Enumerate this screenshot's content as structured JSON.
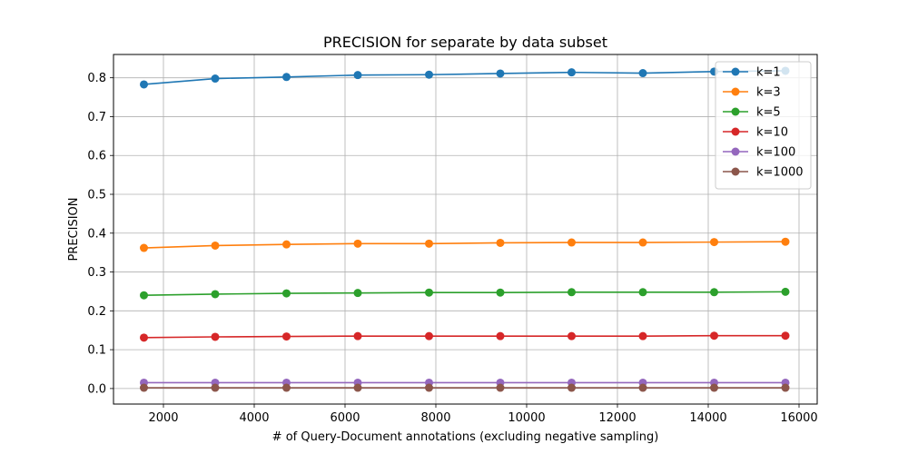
{
  "chart_data": {
    "type": "line",
    "title": "PRECISION for separate by data subset",
    "xlabel": "# of Query-Document annotations (excluding negative sampling)",
    "ylabel": "PRECISION",
    "xlim": [
      900,
      16400
    ],
    "ylim": [
      -0.04,
      0.86
    ],
    "xticks": [
      2000,
      4000,
      6000,
      8000,
      10000,
      12000,
      14000,
      16000
    ],
    "xtick_labels": [
      "2000",
      "4000",
      "6000",
      "8000",
      "10000",
      "12000",
      "14000",
      "16000"
    ],
    "yticks": [
      0.0,
      0.1,
      0.2,
      0.3,
      0.4,
      0.5,
      0.6,
      0.7,
      0.8
    ],
    "ytick_labels": [
      "0.0",
      "0.1",
      "0.2",
      "0.3",
      "0.4",
      "0.5",
      "0.6",
      "0.7",
      "0.8"
    ],
    "grid": true,
    "legend_position": "top-right",
    "x": [
      1570,
      3140,
      4710,
      6280,
      7850,
      9420,
      10990,
      12560,
      14130,
      15700
    ],
    "series": [
      {
        "name": "k=1",
        "color": "#1f77b4",
        "values": [
          0.783,
          0.798,
          0.802,
          0.807,
          0.808,
          0.811,
          0.814,
          0.812,
          0.816,
          0.818
        ]
      },
      {
        "name": "k=3",
        "color": "#ff7f0e",
        "values": [
          0.362,
          0.368,
          0.371,
          0.373,
          0.373,
          0.375,
          0.376,
          0.376,
          0.377,
          0.378
        ]
      },
      {
        "name": "k=5",
        "color": "#2ca02c",
        "values": [
          0.24,
          0.243,
          0.245,
          0.246,
          0.247,
          0.247,
          0.248,
          0.248,
          0.248,
          0.249
        ]
      },
      {
        "name": "k=10",
        "color": "#d62728",
        "values": [
          0.131,
          0.133,
          0.134,
          0.135,
          0.135,
          0.135,
          0.135,
          0.135,
          0.136,
          0.136
        ]
      },
      {
        "name": "k=100",
        "color": "#9467bd",
        "values": [
          0.015,
          0.015,
          0.015,
          0.015,
          0.015,
          0.015,
          0.015,
          0.015,
          0.015,
          0.015
        ]
      },
      {
        "name": "k=1000",
        "color": "#8c564b",
        "values": [
          0.002,
          0.002,
          0.002,
          0.002,
          0.002,
          0.002,
          0.002,
          0.002,
          0.002,
          0.002
        ]
      }
    ]
  }
}
